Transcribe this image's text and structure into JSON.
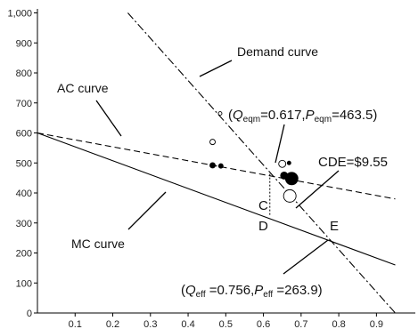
{
  "chart_data": {
    "type": "line",
    "xlim": [
      0,
      0.95
    ],
    "ylim": [
      0,
      1000
    ],
    "x_ticks": [
      "0.1",
      "0.2",
      "0.3",
      "0.4",
      "0.5",
      "0.6",
      "0.7",
      "0.8",
      "0.9"
    ],
    "y_ticks": [
      "0",
      "100",
      "200",
      "300",
      "400",
      "500",
      "600",
      "700",
      "800",
      "900",
      "1,000"
    ],
    "grid": false,
    "series": [
      {
        "name": "Demand curve",
        "style": "dashdot",
        "x": [
          0.24,
          0.95
        ],
        "y": [
          1000,
          0
        ]
      },
      {
        "name": "AC curve",
        "style": "dashed",
        "x": [
          0.0,
          0.95
        ],
        "y": [
          600,
          380
        ]
      },
      {
        "name": "MC curve",
        "style": "solid",
        "x": [
          0.0,
          0.95
        ],
        "y": [
          600,
          160
        ]
      }
    ],
    "scatter": [
      {
        "x": 0.465,
        "y": 570,
        "size": 3,
        "filled": false
      },
      {
        "x": 0.485,
        "y": 665,
        "size": 2,
        "filled": false
      },
      {
        "x": 0.465,
        "y": 492,
        "size": 3,
        "filled": true
      },
      {
        "x": 0.487,
        "y": 490,
        "size": 2.5,
        "filled": true
      },
      {
        "x": 0.65,
        "y": 497,
        "size": 4,
        "filled": false
      },
      {
        "x": 0.668,
        "y": 500,
        "size": 2,
        "filled": true
      },
      {
        "x": 0.655,
        "y": 458,
        "size": 4,
        "filled": true
      },
      {
        "x": 0.675,
        "y": 448,
        "size": 7,
        "filled": true
      },
      {
        "x": 0.67,
        "y": 390,
        "size": 7,
        "filled": false
      }
    ],
    "points": {
      "C": {
        "label": "C",
        "x": 0.617,
        "y": 463.5
      },
      "D": {
        "label": "D",
        "x": 0.617,
        "y": 325
      },
      "E": {
        "label": "E",
        "x": 0.756,
        "y": 263.9
      }
    },
    "annotations": {
      "demand": {
        "label": "Demand curve"
      },
      "ac": {
        "label": "AC curve"
      },
      "mc": {
        "label": "MC curve"
      },
      "cde": {
        "label": "CDE=$9.55"
      },
      "eqm": {
        "label": "(Qeqm=0.617, Peqm=463.5)"
      },
      "eff": {
        "label": "(Qeff=0.756, Peff=263.9)"
      }
    }
  }
}
